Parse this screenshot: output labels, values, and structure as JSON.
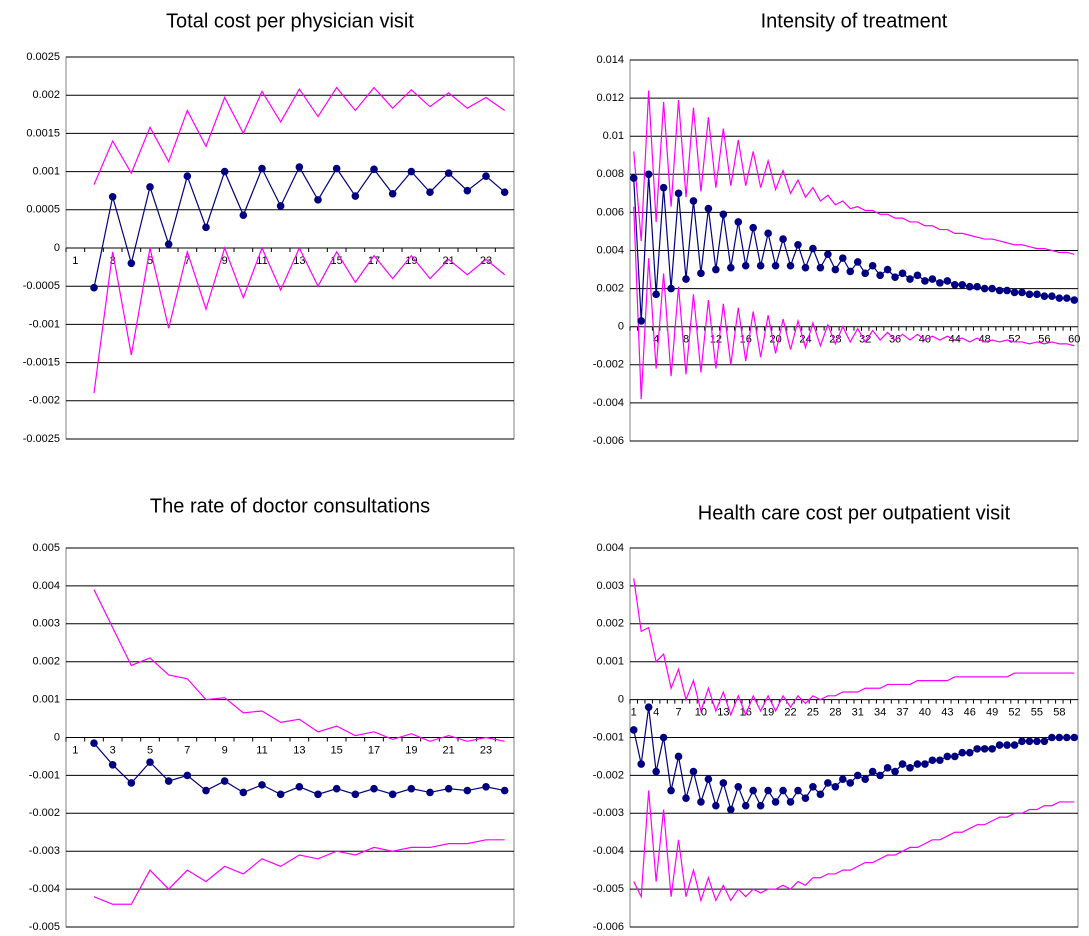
{
  "chart_data": [
    {
      "type": "line",
      "title": "Total cost per physician visit",
      "categories": [
        "1",
        null,
        "3",
        null,
        "5",
        null,
        "7",
        null,
        "9",
        null,
        "11",
        null,
        "13",
        null,
        "15",
        null,
        "17",
        null,
        "19",
        null,
        "21",
        null,
        "23",
        null
      ],
      "series": [
        {
          "color": "#ff00ff",
          "marker": false,
          "values": [
            null,
            0.00083,
            0.0014,
            0.00098,
            0.00158,
            0.00113,
            0.0018,
            0.00133,
            0.00197,
            0.0015,
            0.00205,
            0.00165,
            0.00208,
            0.00172,
            0.0021,
            0.0018,
            0.0021,
            0.00183,
            0.00207,
            0.00185,
            0.00203,
            0.00183,
            0.00197,
            0.0018
          ]
        },
        {
          "color": "#ff00ff",
          "marker": false,
          "values": [
            null,
            -0.0019,
            -5e-05,
            -0.0014,
            0,
            -0.00105,
            -5e-05,
            -0.0008,
            0,
            -0.00065,
            0,
            -0.00055,
            0,
            -0.0005,
            -5e-05,
            -0.00045,
            -0.0001,
            -0.0004,
            -0.0001,
            -0.0004,
            -0.00015,
            -0.00035,
            -0.00015,
            -0.00035
          ]
        },
        {
          "color": "#000080",
          "marker": true,
          "values": [
            null,
            -0.00052,
            0.00067,
            -0.0002,
            0.0008,
            5e-05,
            0.00094,
            0.00027,
            0.001,
            0.00043,
            0.00104,
            0.00055,
            0.00106,
            0.00063,
            0.00104,
            0.00068,
            0.00103,
            0.00071,
            0.001,
            0.00073,
            0.00098,
            0.00075,
            0.00094,
            0.00073
          ]
        }
      ],
      "ylim": [
        -0.0025,
        0.0025
      ],
      "yticks": [
        -0.0025,
        -0.002,
        -0.0015,
        -0.001,
        -0.0005,
        0,
        0.0005,
        0.001,
        0.0015,
        0.002,
        0.0025
      ],
      "grid": true
    },
    {
      "type": "line",
      "title": "Intensity of treatment",
      "categories": [
        null,
        null,
        null,
        "4",
        null,
        null,
        null,
        "8",
        null,
        null,
        null,
        "12",
        null,
        null,
        null,
        "16",
        null,
        null,
        null,
        "20",
        null,
        null,
        null,
        "24",
        null,
        null,
        null,
        "28",
        null,
        null,
        null,
        "32",
        null,
        null,
        null,
        "36",
        null,
        null,
        null,
        "40",
        null,
        null,
        null,
        "44",
        null,
        null,
        null,
        "48",
        null,
        null,
        null,
        "52",
        null,
        null,
        null,
        "56",
        null,
        null,
        null,
        "60"
      ],
      "series": [
        {
          "color": "#ff00ff",
          "marker": false,
          "values": [
            0.0092,
            0.0045,
            0.0124,
            0.0055,
            0.0118,
            0.0063,
            0.0119,
            0.0068,
            0.0115,
            0.0071,
            0.011,
            0.0073,
            0.0104,
            0.0074,
            0.0098,
            0.0074,
            0.0092,
            0.0073,
            0.0087,
            0.0072,
            0.0082,
            0.007,
            0.0077,
            0.0068,
            0.0073,
            0.0066,
            0.0069,
            0.0064,
            0.0066,
            0.0062,
            0.0063,
            0.0061,
            0.0061,
            0.0059,
            0.0059,
            0.0057,
            0.0057,
            0.0055,
            0.0055,
            0.0053,
            0.0053,
            0.0051,
            0.0051,
            0.0049,
            0.0049,
            0.0048,
            0.0047,
            0.0046,
            0.0046,
            0.0045,
            0.0044,
            0.0043,
            0.0043,
            0.0042,
            0.0041,
            0.0041,
            0.004,
            0.0039,
            0.0039,
            0.0038
          ]
        },
        {
          "color": "#ff00ff",
          "marker": false,
          "values": [
            0.0063,
            -0.0038,
            0.0036,
            -0.0022,
            0.0028,
            -0.0026,
            0.0021,
            -0.0025,
            0.0017,
            -0.0024,
            0.0014,
            -0.0022,
            0.0012,
            -0.002,
            0.001,
            -0.0018,
            0.0008,
            -0.0016,
            0.0006,
            -0.0014,
            0.0004,
            -0.0012,
            0.0003,
            -0.0011,
            0.0002,
            -0.001,
            0.0001,
            -0.0009,
            0.0,
            -0.0008,
            -0.0001,
            -0.0008,
            -0.0002,
            -0.0007,
            -0.0003,
            -0.0007,
            -0.0004,
            -0.0007,
            -0.0004,
            -0.0007,
            -0.0005,
            -0.0007,
            -0.0005,
            -0.0007,
            -0.0006,
            -0.0008,
            -0.0006,
            -0.0008,
            -0.0007,
            -0.0008,
            -0.0007,
            -0.0008,
            -0.0008,
            -0.0009,
            -0.0008,
            -0.0009,
            -0.0008,
            -0.0009,
            -0.0009,
            -0.001
          ]
        },
        {
          "color": "#000080",
          "marker": true,
          "values": [
            0.0078,
            0.0003,
            0.008,
            0.0017,
            0.0073,
            0.002,
            0.007,
            0.0025,
            0.0066,
            0.0028,
            0.0062,
            0.003,
            0.0059,
            0.0031,
            0.0055,
            0.0032,
            0.0052,
            0.0032,
            0.0049,
            0.0032,
            0.0046,
            0.0032,
            0.0043,
            0.0031,
            0.0041,
            0.0031,
            0.0038,
            0.003,
            0.0036,
            0.0029,
            0.0034,
            0.0028,
            0.0032,
            0.0027,
            0.003,
            0.0026,
            0.0028,
            0.0025,
            0.0027,
            0.0024,
            0.0025,
            0.0023,
            0.0024,
            0.0022,
            0.0022,
            0.0021,
            0.0021,
            0.002,
            0.002,
            0.0019,
            0.0019,
            0.0018,
            0.0018,
            0.0017,
            0.0017,
            0.0016,
            0.0016,
            0.0015,
            0.0015,
            0.0014
          ]
        }
      ],
      "ylim": [
        -0.006,
        0.014
      ],
      "yticks": [
        -0.006,
        -0.004,
        -0.002,
        0,
        0.002,
        0.004,
        0.006,
        0.008,
        0.01,
        0.012,
        0.014
      ],
      "grid": true
    },
    {
      "type": "line",
      "title": "The rate of doctor consultations",
      "categories": [
        "1",
        null,
        "3",
        null,
        "5",
        null,
        "7",
        null,
        "9",
        null,
        "11",
        null,
        "13",
        null,
        "15",
        null,
        "17",
        null,
        "19",
        null,
        "21",
        null,
        "23",
        null
      ],
      "series": [
        {
          "color": "#ff00ff",
          "marker": false,
          "values": [
            null,
            0.0039,
            0.0029,
            0.0019,
            0.0021,
            0.00165,
            0.00155,
            0.001,
            0.00105,
            0.00065,
            0.0007,
            0.0004,
            0.00048,
            0.00015,
            0.0003,
            5e-05,
            0.00015,
            -5e-05,
            0.0001,
            -0.0001,
            5e-05,
            -0.0001,
            0.0,
            -0.0001
          ]
        },
        {
          "color": "#ff00ff",
          "marker": false,
          "values": [
            null,
            -0.0042,
            -0.0044,
            -0.0044,
            -0.0035,
            -0.004,
            -0.0035,
            -0.0038,
            -0.0034,
            -0.0036,
            -0.0032,
            -0.0034,
            -0.0031,
            -0.0032,
            -0.003,
            -0.0031,
            -0.0029,
            -0.003,
            -0.0029,
            -0.0029,
            -0.0028,
            -0.0028,
            -0.0027,
            -0.0027
          ]
        },
        {
          "color": "#000080",
          "marker": true,
          "values": [
            null,
            -0.00015,
            -0.00072,
            -0.0012,
            -0.00065,
            -0.00115,
            -0.001,
            -0.0014,
            -0.00115,
            -0.00145,
            -0.00125,
            -0.0015,
            -0.0013,
            -0.0015,
            -0.00135,
            -0.0015,
            -0.00135,
            -0.0015,
            -0.00135,
            -0.00145,
            -0.00135,
            -0.0014,
            -0.0013,
            -0.0014
          ]
        }
      ],
      "ylim": [
        -0.005,
        0.005
      ],
      "yticks": [
        -0.005,
        -0.004,
        -0.003,
        -0.002,
        -0.001,
        0,
        0.001,
        0.002,
        0.003,
        0.004,
        0.005
      ],
      "grid": true
    },
    {
      "type": "line",
      "title": "Health care cost per outpatient visit",
      "categories": [
        "1",
        null,
        null,
        "4",
        null,
        null,
        "7",
        null,
        null,
        "10",
        null,
        null,
        "13",
        null,
        null,
        "16",
        null,
        null,
        "19",
        null,
        null,
        "22",
        null,
        null,
        "25",
        null,
        null,
        "28",
        null,
        null,
        "31",
        null,
        null,
        "34",
        null,
        null,
        "37",
        null,
        null,
        "40",
        null,
        null,
        "43",
        null,
        null,
        "46",
        null,
        null,
        "49",
        null,
        null,
        "52",
        null,
        null,
        "55",
        null,
        null,
        "58",
        null,
        null
      ],
      "series": [
        {
          "color": "#ff00ff",
          "marker": false,
          "values": [
            0.0032,
            0.0018,
            0.0019,
            0.001,
            0.0012,
            0.0003,
            0.0008,
            0.0,
            0.0005,
            -0.0003,
            0.0003,
            -0.0003,
            0.0002,
            -0.0004,
            0.0001,
            -0.0004,
            0.0001,
            -0.0003,
            0.0001,
            -0.0003,
            0.0001,
            -0.0002,
            0.0001,
            -0.0001,
            0.0001,
            0.0,
            0.0001,
            0.0001,
            0.0002,
            0.0002,
            0.0002,
            0.0003,
            0.0003,
            0.0003,
            0.0004,
            0.0004,
            0.0004,
            0.0004,
            0.0005,
            0.0005,
            0.0005,
            0.0005,
            0.0005,
            0.0006,
            0.0006,
            0.0006,
            0.0006,
            0.0006,
            0.0006,
            0.0006,
            0.0006,
            0.0007,
            0.0007,
            0.0007,
            0.0007,
            0.0007,
            0.0007,
            0.0007,
            0.0007,
            0.0007
          ]
        },
        {
          "color": "#ff00ff",
          "marker": false,
          "values": [
            -0.0048,
            -0.0052,
            -0.0024,
            -0.0048,
            -0.0029,
            -0.0052,
            -0.0037,
            -0.0052,
            -0.0045,
            -0.0053,
            -0.0047,
            -0.0053,
            -0.0049,
            -0.0053,
            -0.005,
            -0.0052,
            -0.005,
            -0.0051,
            -0.005,
            -0.005,
            -0.0049,
            -0.005,
            -0.0048,
            -0.0049,
            -0.0047,
            -0.0047,
            -0.0046,
            -0.0046,
            -0.0045,
            -0.0045,
            -0.0044,
            -0.0043,
            -0.0043,
            -0.0042,
            -0.0041,
            -0.0041,
            -0.004,
            -0.0039,
            -0.0039,
            -0.0038,
            -0.0037,
            -0.0037,
            -0.0036,
            -0.0035,
            -0.0035,
            -0.0034,
            -0.0033,
            -0.0033,
            -0.0032,
            -0.0031,
            -0.0031,
            -0.003,
            -0.003,
            -0.0029,
            -0.0029,
            -0.0028,
            -0.0028,
            -0.0027,
            -0.0027,
            -0.0027
          ]
        },
        {
          "color": "#000080",
          "marker": true,
          "values": [
            -0.0008,
            -0.0017,
            -0.0002,
            -0.0019,
            -0.001,
            -0.0024,
            -0.0015,
            -0.0026,
            -0.0019,
            -0.0027,
            -0.0021,
            -0.0028,
            -0.0022,
            -0.0029,
            -0.0023,
            -0.0028,
            -0.0024,
            -0.0028,
            -0.0024,
            -0.0027,
            -0.0024,
            -0.0027,
            -0.0024,
            -0.0026,
            -0.0023,
            -0.0025,
            -0.0022,
            -0.0023,
            -0.0021,
            -0.0022,
            -0.002,
            -0.0021,
            -0.0019,
            -0.002,
            -0.0018,
            -0.0019,
            -0.0017,
            -0.0018,
            -0.0017,
            -0.0017,
            -0.0016,
            -0.0016,
            -0.0015,
            -0.0015,
            -0.0014,
            -0.0014,
            -0.0013,
            -0.0013,
            -0.0013,
            -0.0012,
            -0.0012,
            -0.0012,
            -0.0011,
            -0.0011,
            -0.0011,
            -0.0011,
            -0.001,
            -0.001,
            -0.001,
            -0.001
          ]
        }
      ],
      "ylim": [
        -0.006,
        0.004
      ],
      "yticks": [
        -0.006,
        -0.005,
        -0.004,
        -0.003,
        -0.002,
        -0.001,
        0,
        0.001,
        0.002,
        0.003,
        0.004
      ],
      "grid": true
    }
  ]
}
